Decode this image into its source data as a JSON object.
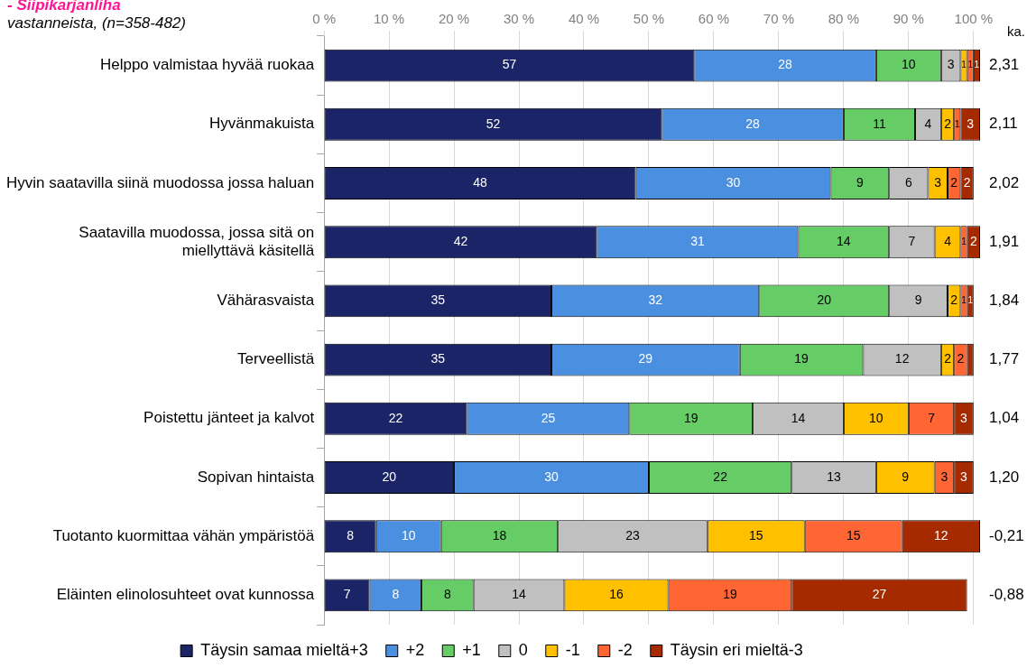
{
  "chart_data": {
    "type": "bar",
    "orientation": "horizontal",
    "stacked": true,
    "title": "- Siipikarjanliha",
    "subtitle": "vastanneista, (n=358-482)",
    "categories": [
      "Helppo valmistaa hyvää ruokaa",
      "Hyvänmakuista",
      "Hyvin saatavilla siinä muodossa jossa haluan",
      "Saatavilla muodossa, jossa sitä on miellyttävä käsitellä",
      "Vähärasvaista",
      "Terveellistä",
      "Poistettu jänteet ja kalvot",
      "Sopivan hintaista",
      "Tuotanto kuormittaa vähän ympäristöä",
      "Eläinten elinolosuhteet ovat kunnossa"
    ],
    "series": [
      {
        "name": "Täysin samaa mieltä+3",
        "color": "#1b2466",
        "values": [
          57,
          52,
          48,
          42,
          35,
          35,
          22,
          20,
          8,
          7
        ]
      },
      {
        "name": "+2",
        "color": "#4a8fe0",
        "values": [
          28,
          28,
          30,
          31,
          32,
          29,
          25,
          30,
          10,
          8
        ]
      },
      {
        "name": "+1",
        "color": "#66cc66",
        "values": [
          10,
          11,
          9,
          14,
          20,
          19,
          19,
          22,
          18,
          8
        ]
      },
      {
        "name": "0",
        "color": "#c0c0c0",
        "values": [
          3,
          4,
          6,
          7,
          9,
          12,
          14,
          13,
          23,
          14
        ]
      },
      {
        "name": "-1",
        "color": "#ffc000",
        "values": [
          1,
          2,
          3,
          4,
          2,
          2,
          10,
          9,
          15,
          16
        ]
      },
      {
        "name": "-2",
        "color": "#ff6633",
        "values": [
          1,
          1,
          2,
          1,
          1,
          2,
          7,
          3,
          15,
          19
        ]
      },
      {
        "name": "Täysin eri mieltä-3",
        "color": "#a52a00",
        "values": [
          1,
          3,
          2,
          2,
          1,
          1,
          3,
          3,
          12,
          27
        ],
        "value_labels": [
          "1",
          "3",
          "2",
          "2",
          "1",
          null,
          "3",
          "3",
          "12",
          "27"
        ]
      }
    ],
    "xlim": [
      0,
      101
    ],
    "xticks": [
      {
        "value": 0,
        "label": "0 %"
      },
      {
        "value": 10,
        "label": "10 %"
      },
      {
        "value": 20,
        "label": "20 %"
      },
      {
        "value": 30,
        "label": "30 %"
      },
      {
        "value": 40,
        "label": "40 %"
      },
      {
        "value": 50,
        "label": "50 %"
      },
      {
        "value": 60,
        "label": "60 %"
      },
      {
        "value": 70,
        "label": "70 %"
      },
      {
        "value": 80,
        "label": "80 %"
      },
      {
        "value": 90,
        "label": "90 %"
      },
      {
        "value": 100,
        "label": "100 %"
      }
    ],
    "grid": "x",
    "legend": "bottom",
    "data_labels": true,
    "annotations": [
      "ka.",
      "2,31",
      "2,11",
      "2,02",
      "1,91",
      "1,84",
      "1,77",
      "1,04",
      "1,20",
      "-0,21",
      "-0,88"
    ]
  }
}
